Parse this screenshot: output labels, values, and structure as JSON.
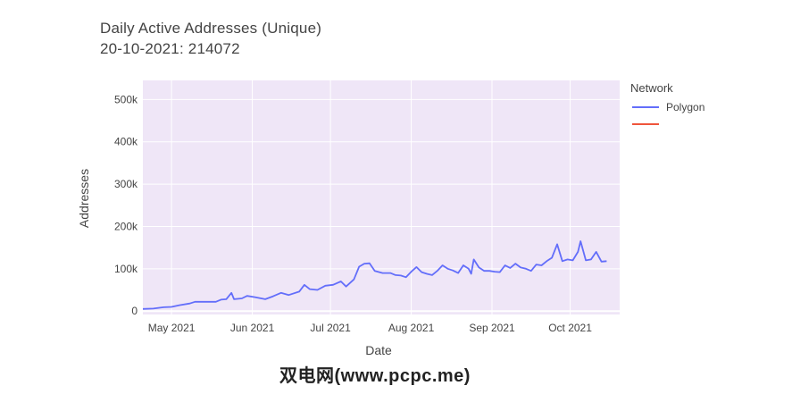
{
  "title": "Daily Active Addresses (Unique)",
  "subtitle": "20-10-2021: 214072",
  "watermark": "双电网(www.pcpc.me)",
  "colors": {
    "Polygon": "#636efa",
    "Ethereum": "#ef553b",
    "plot_bg": "#efe6f7",
    "grid": "#ffffff",
    "paper_bg": "#ffffff"
  },
  "chart_data": {
    "type": "line",
    "xlabel": "Date",
    "ylabel": "Addresses",
    "legend_title": "Network",
    "legend_position": "right",
    "grid": true,
    "xlim": [
      "2021-04-20",
      "2021-10-20"
    ],
    "ylim": [
      -8000,
      545000
    ],
    "x_ticks": [
      "2021-05-01",
      "2021-06-01",
      "2021-07-01",
      "2021-08-01",
      "2021-09-01",
      "2021-10-01"
    ],
    "x_tick_labels": [
      "May 2021",
      "Jun 2021",
      "Jul 2021",
      "Aug 2021",
      "Sep 2021",
      "Oct 2021"
    ],
    "y_ticks": [
      0,
      100000,
      200000,
      300000,
      400000,
      500000
    ],
    "y_tick_labels": [
      "0",
      "100k",
      "200k",
      "300k",
      "400k",
      "500k"
    ],
    "series": [
      {
        "name": "Polygon",
        "points": [
          [
            "2021-04-20",
            5000
          ],
          [
            "2021-04-24",
            6000
          ],
          [
            "2021-04-28",
            9000
          ],
          [
            "2021-05-01",
            10000
          ],
          [
            "2021-05-04",
            14000
          ],
          [
            "2021-05-08",
            18000
          ],
          [
            "2021-05-10",
            22000
          ],
          [
            "2021-05-14",
            22000
          ],
          [
            "2021-05-18",
            22000
          ],
          [
            "2021-05-20",
            27000
          ],
          [
            "2021-05-22",
            28000
          ],
          [
            "2021-05-24",
            43000
          ],
          [
            "2021-05-25",
            28000
          ],
          [
            "2021-05-28",
            30000
          ],
          [
            "2021-05-30",
            36000
          ],
          [
            "2021-06-02",
            33000
          ],
          [
            "2021-06-06",
            28000
          ],
          [
            "2021-06-09",
            35000
          ],
          [
            "2021-06-12",
            43000
          ],
          [
            "2021-06-15",
            38000
          ],
          [
            "2021-06-19",
            46000
          ],
          [
            "2021-06-21",
            62000
          ],
          [
            "2021-06-23",
            52000
          ],
          [
            "2021-06-26",
            50000
          ],
          [
            "2021-06-29",
            60000
          ],
          [
            "2021-07-02",
            62000
          ],
          [
            "2021-07-05",
            70000
          ],
          [
            "2021-07-07",
            58000
          ],
          [
            "2021-07-10",
            75000
          ],
          [
            "2021-07-12",
            105000
          ],
          [
            "2021-07-14",
            112000
          ],
          [
            "2021-07-16",
            113000
          ],
          [
            "2021-07-18",
            95000
          ],
          [
            "2021-07-21",
            90000
          ],
          [
            "2021-07-24",
            90000
          ],
          [
            "2021-07-26",
            85000
          ],
          [
            "2021-07-28",
            84000
          ],
          [
            "2021-07-30",
            80000
          ],
          [
            "2021-08-01",
            93000
          ],
          [
            "2021-08-03",
            104000
          ],
          [
            "2021-08-05",
            92000
          ],
          [
            "2021-08-07",
            88000
          ],
          [
            "2021-08-09",
            85000
          ],
          [
            "2021-08-11",
            95000
          ],
          [
            "2021-08-13",
            108000
          ],
          [
            "2021-08-15",
            100000
          ],
          [
            "2021-08-17",
            96000
          ],
          [
            "2021-08-19",
            90000
          ],
          [
            "2021-08-21",
            108000
          ],
          [
            "2021-08-23",
            100000
          ],
          [
            "2021-08-24",
            88000
          ],
          [
            "2021-08-25",
            122000
          ],
          [
            "2021-08-27",
            103000
          ],
          [
            "2021-08-29",
            95000
          ],
          [
            "2021-08-31",
            95000
          ],
          [
            "2021-09-02",
            93000
          ],
          [
            "2021-09-04",
            92000
          ],
          [
            "2021-09-06",
            108000
          ],
          [
            "2021-09-08",
            102000
          ],
          [
            "2021-09-10",
            112000
          ],
          [
            "2021-09-12",
            103000
          ],
          [
            "2021-09-14",
            100000
          ],
          [
            "2021-09-16",
            95000
          ],
          [
            "2021-09-18",
            110000
          ],
          [
            "2021-09-20",
            108000
          ],
          [
            "2021-09-22",
            118000
          ],
          [
            "2021-09-24",
            126000
          ],
          [
            "2021-09-26",
            158000
          ],
          [
            "2021-09-28",
            118000
          ],
          [
            "2021-09-30",
            122000
          ],
          [
            "2021-10-02",
            120000
          ],
          [
            "2021-10-04",
            140000
          ],
          [
            "2021-10-05",
            165000
          ],
          [
            "2021-10-07",
            120000
          ],
          [
            "2021-10-09",
            122000
          ],
          [
            "2021-10-11",
            140000
          ],
          [
            "2021-10-13",
            117000
          ],
          [
            "2021-10-15",
            118000
          ]
        ],
        "comment_removed": true
      }
    ]
  }
}
